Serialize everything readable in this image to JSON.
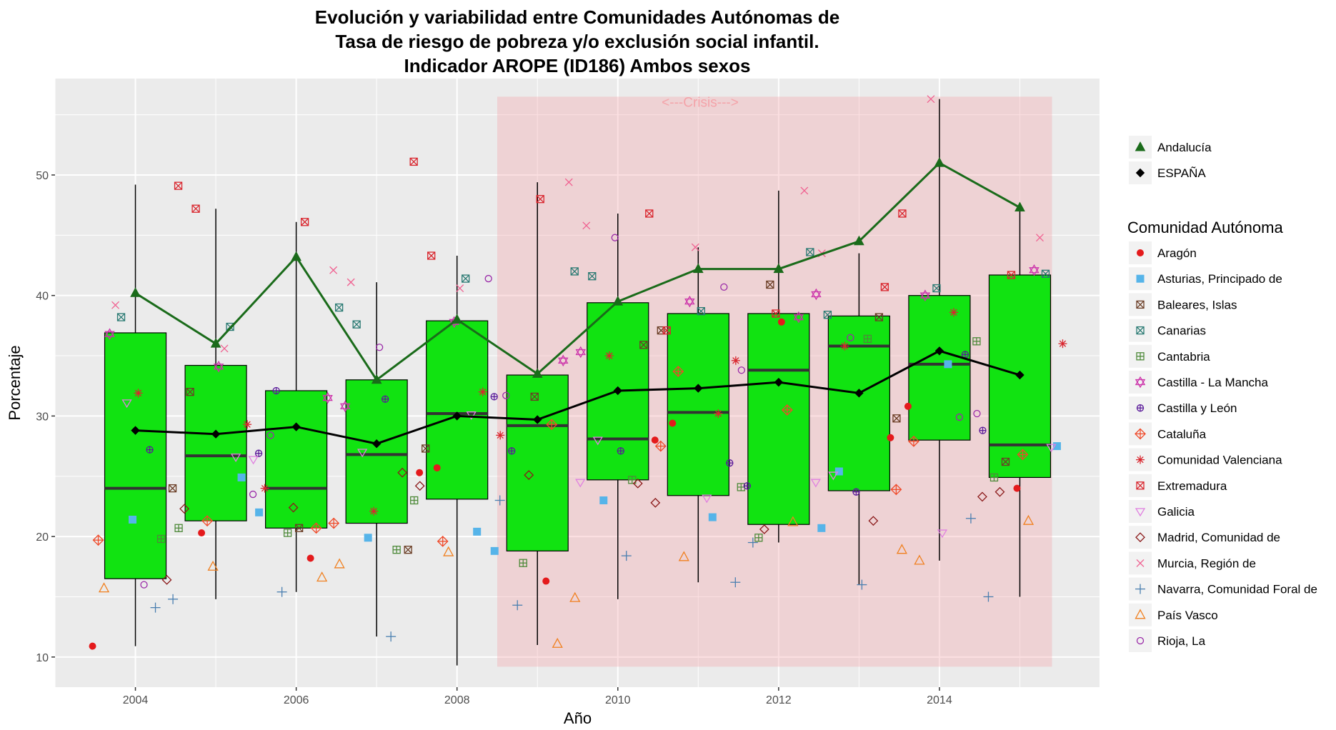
{
  "chart_data": {
    "type": "boxplot",
    "title_lines": [
      "Evolución y variabilidad entre Comunidades Autónomas de",
      "Tasa de riesgo de pobreza y/o exclusión social infantil.",
      "Indicador AROPE (ID186) Ambos sexos"
    ],
    "xlabel": "Año",
    "ylabel": "Porcentaje",
    "xlim": [
      2003,
      2016
    ],
    "ylim": [
      7.5,
      58
    ],
    "x_ticks": [
      2004,
      2006,
      2008,
      2010,
      2012,
      2014
    ],
    "y_ticks": [
      10,
      20,
      30,
      40,
      50
    ],
    "grid": true,
    "annotation": {
      "text": "<---Crisis--->",
      "x_start": 2008.5,
      "x_end": 2015.4,
      "y_min": 9.2,
      "y_max": 56.5,
      "color": "#f4a3a9"
    },
    "years": [
      2004,
      2005,
      2006,
      2007,
      2008,
      2009,
      2010,
      2011,
      2012,
      2013,
      2014,
      2015
    ],
    "boxes": [
      {
        "year": 2004,
        "whisker_low": 10.9,
        "q1": 16.5,
        "median": 24.0,
        "q3": 36.9,
        "whisker_high": 49.2
      },
      {
        "year": 2005,
        "whisker_low": 14.8,
        "q1": 21.3,
        "median": 26.7,
        "q3": 34.2,
        "whisker_high": 47.2
      },
      {
        "year": 2006,
        "whisker_low": 15.4,
        "q1": 20.7,
        "median": 24.0,
        "q3": 32.1,
        "whisker_high": 46.1
      },
      {
        "year": 2007,
        "whisker_low": 11.7,
        "q1": 21.1,
        "median": 26.8,
        "q3": 33.0,
        "whisker_high": 41.1
      },
      {
        "year": 2008,
        "whisker_low": 9.3,
        "q1": 23.1,
        "median": 30.2,
        "q3": 37.9,
        "whisker_high": 43.3
      },
      {
        "year": 2009,
        "whisker_low": 11.0,
        "q1": 18.8,
        "median": 29.2,
        "q3": 33.4,
        "whisker_high": 49.4
      },
      {
        "year": 2010,
        "whisker_low": 14.8,
        "q1": 24.7,
        "median": 28.1,
        "q3": 39.4,
        "whisker_high": 46.8
      },
      {
        "year": 2011,
        "whisker_low": 16.2,
        "q1": 23.4,
        "median": 30.3,
        "q3": 38.5,
        "whisker_high": 44.0
      },
      {
        "year": 2012,
        "whisker_low": 19.5,
        "q1": 21.0,
        "median": 33.8,
        "q3": 38.5,
        "whisker_high": 48.7
      },
      {
        "year": 2013,
        "whisker_low": 16.0,
        "q1": 23.8,
        "median": 35.8,
        "q3": 38.3,
        "whisker_high": 43.5
      },
      {
        "year": 2014,
        "whisker_low": 18.0,
        "q1": 28.0,
        "median": 34.3,
        "q3": 40.0,
        "whisker_high": 56.3
      },
      {
        "year": 2015,
        "whisker_low": 15.0,
        "q1": 24.9,
        "median": 27.6,
        "q3": 41.7,
        "whisker_high": 47.2
      }
    ],
    "box_color": "#11e311",
    "lines": [
      {
        "name": "Andalucía",
        "color": "#1a6b1a",
        "marker": "triangle",
        "values": [
          40.2,
          36.0,
          43.2,
          33.0,
          38.0,
          33.5,
          39.5,
          42.2,
          42.2,
          44.5,
          51.0,
          47.3
        ]
      },
      {
        "name": "ESPAÑA",
        "color": "#000000",
        "marker": "diamond",
        "values": [
          28.8,
          28.5,
          29.1,
          27.7,
          30.0,
          29.7,
          32.1,
          32.3,
          32.8,
          31.9,
          35.4,
          33.4
        ]
      }
    ],
    "legend_placement": "right",
    "legend_title": "Comunidad Autónoma",
    "series": [
      {
        "name": "Aragón",
        "color": "#e41a1c",
        "marker": "circle",
        "values": [
          10.9,
          20.3,
          18.2,
          25.3,
          25.7,
          16.3,
          28.0,
          29.4,
          37.8,
          28.2,
          30.8,
          24.0
        ]
      },
      {
        "name": "Asturias, Principado de",
        "color": "#56b4e9",
        "marker": "square",
        "values": [
          21.4,
          24.9,
          22.0,
          19.9,
          20.4,
          18.8,
          23.0,
          21.6,
          20.7,
          25.4,
          34.3,
          27.5
        ]
      },
      {
        "name": "Baleares, Islas",
        "color": "#6b3e26",
        "marker": "square-x",
        "values": [
          24.0,
          32.0,
          20.7,
          18.9,
          27.3,
          31.6,
          35.9,
          37.1,
          40.9,
          38.2,
          29.8,
          26.2
        ]
      },
      {
        "name": "Canarias",
        "color": "#2a7a73",
        "marker": "square-x",
        "values": [
          38.2,
          37.4,
          39.0,
          37.6,
          41.4,
          42.0,
          41.6,
          38.7,
          43.6,
          38.4,
          40.6,
          41.8
        ]
      },
      {
        "name": "Cantabria",
        "color": "#4e8a3a",
        "marker": "square-plus",
        "values": [
          19.8,
          20.7,
          20.3,
          18.9,
          23.0,
          17.8,
          24.7,
          24.1,
          19.9,
          36.4,
          36.2,
          24.9
        ]
      },
      {
        "name": "Castilla - La Mancha",
        "color": "#cc33aa",
        "marker": "star-of-david",
        "values": [
          36.8,
          34.1,
          31.5,
          30.8,
          37.8,
          34.6,
          35.3,
          39.5,
          38.2,
          40.1,
          40.0,
          42.1
        ]
      },
      {
        "name": "Castilla y León",
        "color": "#5a1a9a",
        "marker": "circle-plus",
        "values": [
          27.2,
          26.9,
          32.1,
          31.4,
          31.6,
          27.1,
          27.1,
          26.1,
          24.2,
          23.7,
          35.1,
          28.8
        ]
      },
      {
        "name": "Cataluña",
        "color": "#ef4a2a",
        "marker": "diamond-plus",
        "values": [
          19.7,
          21.3,
          20.7,
          21.1,
          19.6,
          29.3,
          27.5,
          33.7,
          30.5,
          23.9,
          27.9,
          26.8
        ]
      },
      {
        "name": "Comunidad Valenciana",
        "color": "#d9262e",
        "marker": "asterisk",
        "values": [
          31.9,
          29.3,
          24.0,
          22.1,
          32.0,
          28.4,
          35.0,
          30.2,
          34.6,
          35.8,
          38.6,
          36.0
        ]
      },
      {
        "name": "Extremadura",
        "color": "#d9262e",
        "marker": "square-x",
        "values": [
          49.1,
          47.2,
          46.1,
          51.1,
          43.3,
          48.0,
          46.8,
          37.1,
          38.5,
          40.7,
          46.8,
          41.7
        ]
      },
      {
        "name": "Galicia",
        "color": "#e080e0",
        "marker": "triangle-down",
        "values": [
          31.1,
          26.6,
          26.4,
          27.0,
          30.1,
          24.5,
          28.0,
          23.2,
          24.5,
          25.1,
          20.3,
          27.4
        ]
      },
      {
        "name": "Madrid, Comunidad de",
        "color": "#8b1a1a",
        "marker": "diamond",
        "values": [
          16.4,
          22.3,
          22.4,
          25.3,
          24.2,
          25.1,
          24.4,
          22.8,
          20.6,
          21.3,
          23.3,
          23.7
        ]
      },
      {
        "name": "Murcia, Región de",
        "color": "#f06090",
        "marker": "x",
        "values": [
          39.2,
          35.6,
          42.1,
          41.1,
          40.6,
          49.4,
          45.8,
          44.0,
          48.7,
          43.5,
          56.3,
          44.8
        ]
      },
      {
        "name": "Navarra, Comunidad Foral de",
        "color": "#4a7fb0",
        "marker": "plus",
        "values": [
          14.1,
          14.8,
          15.4,
          11.7,
          23.0,
          14.3,
          18.4,
          16.2,
          19.5,
          16.0,
          21.5,
          15.0
        ]
      },
      {
        "name": "País Vasco",
        "color": "#f08020",
        "marker": "triangle",
        "values": [
          15.7,
          17.5,
          16.6,
          17.7,
          18.7,
          11.1,
          14.9,
          18.3,
          21.2,
          18.9,
          18.0,
          21.3
        ]
      },
      {
        "name": "Rioja, La",
        "color": "#9a2aa8",
        "marker": "circle",
        "values": [
          16.0,
          23.5,
          28.4,
          35.7,
          41.4,
          31.7,
          44.8,
          40.7,
          33.8,
          36.5,
          29.9,
          30.2
        ]
      }
    ]
  }
}
